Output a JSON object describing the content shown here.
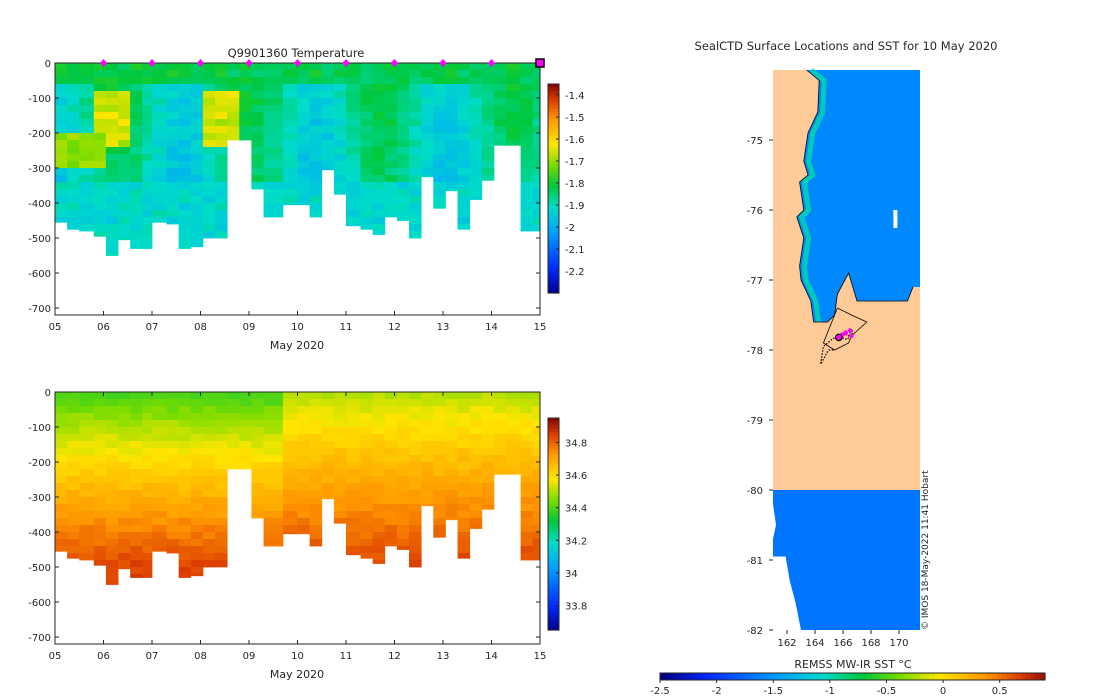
{
  "credit": "© IMOS 18-May-2022 11:41 Hobart",
  "x_ticks": [
    "05",
    "06",
    "07",
    "08",
    "09",
    "10",
    "11",
    "12",
    "13",
    "14",
    "15"
  ],
  "colors": {
    "frame": "#262626",
    "land": "#fdca98",
    "missing": "#ffffff",
    "profile_marker": "#ff00ff",
    "track": "#000000"
  },
  "chart_data": [
    {
      "id": "temperature",
      "type": "heatmap",
      "title": "Q9901360  Temperature",
      "xlabel": "May 2020",
      "ylabel": "",
      "xlim": [
        5,
        15
      ],
      "ylim": [
        -720,
        0
      ],
      "y_ticks": [
        0,
        -100,
        -200,
        -300,
        -400,
        -500,
        -600,
        -700
      ],
      "colorbar": {
        "min": -2.3,
        "max": -1.35,
        "ticks": [
          -1.4,
          -1.5,
          -1.6,
          -1.7,
          -1.8,
          -1.9,
          -2,
          -2.1,
          -2.2
        ]
      },
      "profile_days": [
        6,
        7,
        8,
        9,
        10,
        11,
        12,
        13,
        14
      ],
      "last_profile_day": 15,
      "profile_starts": [
        5.0,
        5.25,
        5.5,
        5.8,
        6.05,
        6.3,
        6.55,
        6.8,
        7.0,
        7.3,
        7.55,
        7.8,
        8.05,
        8.3,
        8.55,
        8.8,
        9.05,
        9.3,
        9.7,
        10.0,
        10.25,
        10.5,
        10.75,
        11.0,
        11.3,
        11.55,
        11.8,
        12.05,
        12.3,
        12.55,
        12.8,
        13.05,
        13.3,
        13.55,
        13.8,
        14.05,
        14.3,
        14.6,
        14.85
      ],
      "profile_depths": [
        -455,
        -475,
        -480,
        -495,
        -550,
        -505,
        -530,
        -530,
        -455,
        -460,
        -530,
        -525,
        -500,
        -500,
        -220,
        -220,
        -360,
        -440,
        -405,
        -405,
        -440,
        -305,
        -375,
        -465,
        -475,
        -490,
        -440,
        -450,
        -500,
        -325,
        -415,
        -365,
        -475,
        -390,
        -335,
        -235,
        -235,
        -480,
        -480
      ],
      "column_samples": [
        {
          "day": 6.1,
          "temps": [
            -1.82,
            -1.65,
            -1.56,
            -1.72,
            -1.76,
            -1.85,
            -1.88,
            -1.89
          ]
        },
        {
          "day": 8.3,
          "temps": [
            -1.8,
            -1.64,
            -1.58,
            -1.7,
            -1.78,
            -1.84,
            -1.88,
            -1.9
          ]
        },
        {
          "day": 11.0,
          "temps": [
            -1.84,
            -1.82,
            -1.8,
            -1.79,
            -1.82,
            -1.86,
            -1.88,
            -1.89
          ]
        },
        {
          "day": 14.0,
          "temps": [
            -1.87,
            -1.86,
            -1.84,
            -1.82,
            -1.84,
            -1.87,
            -1.89,
            -1.9
          ]
        }
      ]
    },
    {
      "id": "salinity",
      "type": "heatmap",
      "title": "",
      "xlabel": "May 2020",
      "ylabel": "",
      "xlim": [
        5,
        15
      ],
      "ylim": [
        -720,
        0
      ],
      "y_ticks": [
        0,
        -100,
        -200,
        -300,
        -400,
        -500,
        -600,
        -700
      ],
      "colorbar": {
        "min": 33.65,
        "max": 34.95,
        "ticks": [
          34.8,
          34.6,
          34.4,
          34.2,
          34,
          33.8
        ]
      },
      "surface_value": 34.38,
      "deep_value": 34.85,
      "late_surface_value": 34.5
    },
    {
      "id": "sst_map",
      "type": "heatmap",
      "title": "SealCTD Surface Locations and SST for 10 May 2020",
      "xlabel": "REMSS MW-IR SST °C",
      "lon_range": [
        161,
        171
      ],
      "lat_range": [
        -82,
        -74
      ],
      "x_ticks": [
        162,
        164,
        166,
        168,
        170
      ],
      "y_ticks": [
        -75,
        -76,
        -77,
        -78,
        -79,
        -80,
        -81,
        -82
      ],
      "colorbar": {
        "min": -2.5,
        "max": 0.9,
        "ticks": [
          -2.5,
          -2,
          -1.5,
          -1,
          -0.5,
          0,
          0.5
        ]
      },
      "ocean_sst": -1.6,
      "coastal_sst": -1.0,
      "shelf_sst_south": -1.7,
      "ice_shelf_lat": -80,
      "coastline": [
        [
          163.4,
          -74
        ],
        [
          164.0,
          -74.1
        ],
        [
          164.3,
          -74.15
        ],
        [
          164.2,
          -74.6
        ],
        [
          163.5,
          -74.9
        ],
        [
          163.2,
          -75.3
        ],
        [
          163.5,
          -75.5
        ],
        [
          162.9,
          -75.6
        ],
        [
          163.2,
          -76.0
        ],
        [
          162.7,
          -76.1
        ],
        [
          163.2,
          -76.4
        ],
        [
          162.9,
          -76.8
        ],
        [
          163.0,
          -77.0
        ],
        [
          163.7,
          -77.3
        ],
        [
          163.9,
          -77.6
        ],
        [
          164.9,
          -77.6
        ],
        [
          165.4,
          -77.5
        ],
        [
          165.6,
          -77.2
        ],
        [
          166.4,
          -76.9
        ],
        [
          167.0,
          -77.3
        ],
        [
          168.2,
          -77.3
        ],
        [
          170.6,
          -77.3
        ],
        [
          171.0,
          -77.1
        ]
      ],
      "ross_island": [
        [
          164.6,
          -77.9
        ],
        [
          165.6,
          -77.4
        ],
        [
          166.6,
          -77.5
        ],
        [
          167.7,
          -77.6
        ],
        [
          166.6,
          -77.8
        ],
        [
          166.4,
          -77.9
        ],
        [
          165.4,
          -78.0
        ]
      ],
      "ice_shelf_edge": [
        [
          161.0,
          -80.0
        ],
        [
          171.0,
          -80.0
        ]
      ],
      "track": [
        [
          165.3,
          -78.0
        ],
        [
          165.0,
          -78.0
        ],
        [
          164.8,
          -78.05
        ],
        [
          164.7,
          -78.1
        ],
        [
          164.4,
          -78.2
        ],
        [
          164.6,
          -77.95
        ],
        [
          165.2,
          -77.85
        ],
        [
          166.0,
          -77.75
        ],
        [
          166.4,
          -77.8
        ],
        [
          166.6,
          -77.7
        ],
        [
          166.7,
          -77.75
        ],
        [
          166.3,
          -77.85
        ],
        [
          165.8,
          -77.82
        ],
        [
          165.5,
          -77.83
        ]
      ],
      "positions": [
        [
          165.8,
          -77.82
        ],
        [
          166.2,
          -77.75
        ],
        [
          166.5,
          -77.72
        ],
        [
          166.6,
          -77.8
        ],
        [
          166.0,
          -77.78
        ]
      ],
      "latest_position": [
        165.7,
        -77.82
      ]
    }
  ]
}
